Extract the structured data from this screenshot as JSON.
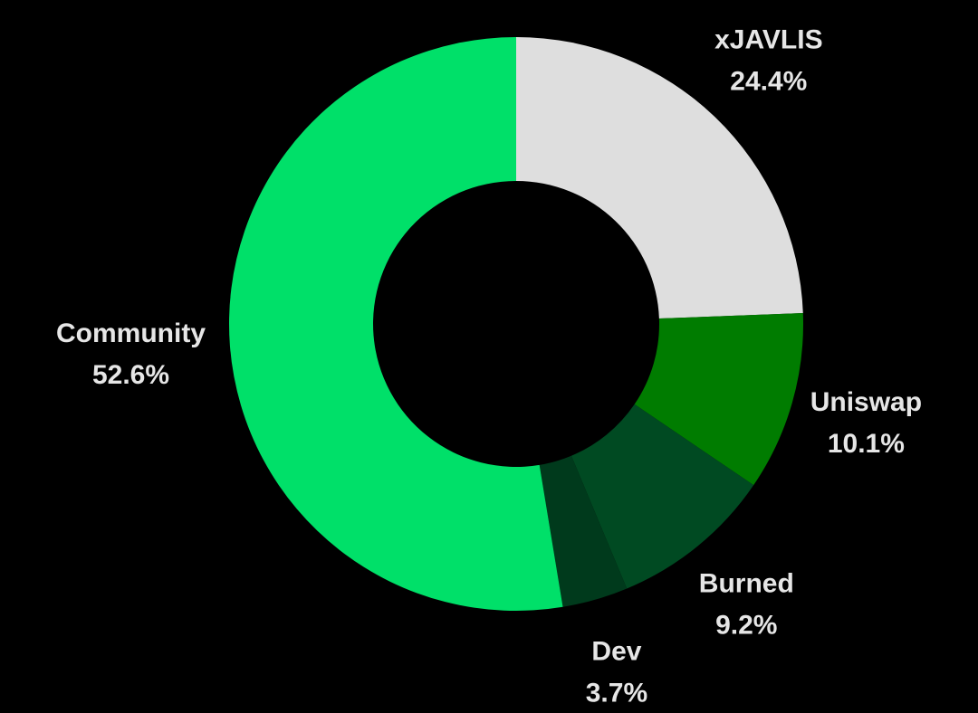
{
  "chart_data": {
    "type": "pie",
    "categories": [
      "xJAVLIS",
      "Uniswap",
      "Burned",
      "Dev",
      "Community"
    ],
    "values": [
      24.4,
      10.1,
      9.2,
      3.7,
      52.6
    ],
    "value_labels": [
      "24.4%",
      "10.1%",
      "9.2%",
      "3.7%",
      "52.6%"
    ],
    "colors": [
      "#dedede",
      "#007c00",
      "#004a22",
      "#003a1c",
      "#00e069"
    ]
  }
}
